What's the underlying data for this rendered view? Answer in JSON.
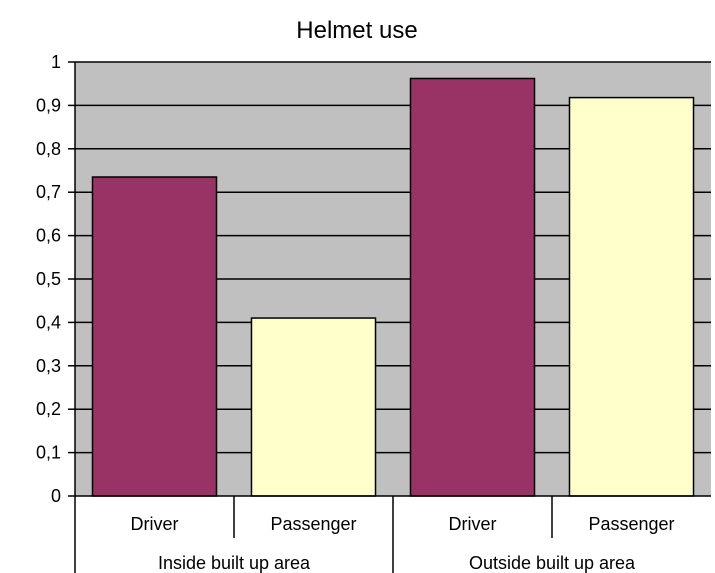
{
  "chart_data": {
    "type": "bar",
    "title": "Helmet use",
    "xlabel": "",
    "ylabel": "",
    "ylim": [
      0,
      1
    ],
    "yticks": [
      "0",
      "0,1",
      "0,2",
      "0,3",
      "0,4",
      "0,5",
      "0,6",
      "0,7",
      "0,8",
      "0,9",
      "1"
    ],
    "grid": true,
    "legend": "none",
    "plot_background": "#c0c0c0",
    "groups": [
      {
        "label": "Inside built up area",
        "bars": [
          {
            "label": "Driver",
            "value": 0.735,
            "color": "#993366"
          },
          {
            "label": "Passenger",
            "value": 0.41,
            "color": "#ffffcc"
          }
        ]
      },
      {
        "label": "Outside built up area",
        "bars": [
          {
            "label": "Driver",
            "value": 0.962,
            "color": "#993366"
          },
          {
            "label": "Passenger",
            "value": 0.918,
            "color": "#ffffcc"
          }
        ]
      }
    ]
  }
}
